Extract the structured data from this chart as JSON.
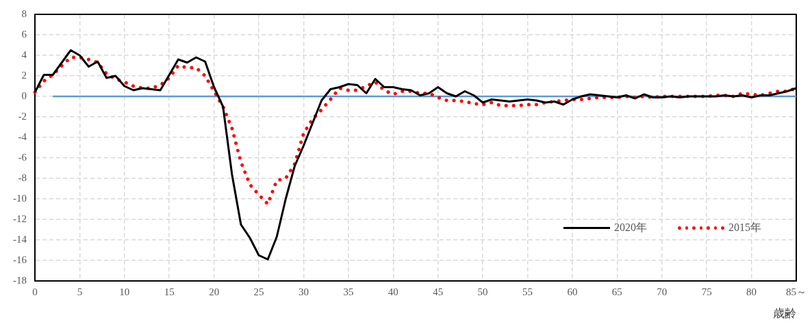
{
  "chart_data": {
    "type": "line",
    "xlabel": "歳齢",
    "categories": [
      "0",
      null,
      null,
      null,
      null,
      "5",
      null,
      null,
      null,
      null,
      "10",
      null,
      null,
      null,
      null,
      "15",
      null,
      null,
      null,
      null,
      "20",
      null,
      null,
      null,
      null,
      "25",
      null,
      null,
      null,
      null,
      "30",
      null,
      null,
      null,
      null,
      "35",
      null,
      null,
      null,
      null,
      "40",
      null,
      null,
      null,
      null,
      "45",
      null,
      null,
      null,
      null,
      "50",
      null,
      null,
      null,
      null,
      "55",
      null,
      null,
      null,
      null,
      "60",
      null,
      null,
      null,
      null,
      "65",
      null,
      null,
      null,
      null,
      "70",
      null,
      null,
      null,
      null,
      "75",
      null,
      null,
      null,
      null,
      "80",
      null,
      null,
      null,
      null,
      "85～"
    ],
    "series": [
      {
        "name": "2020年",
        "color": "#000000",
        "line_style": "solid",
        "values": [
          0.4,
          2.1,
          2.1,
          3.3,
          4.5,
          4.0,
          2.9,
          3.4,
          1.8,
          2.0,
          1.0,
          0.6,
          0.8,
          0.7,
          0.6,
          2.1,
          3.6,
          3.3,
          3.8,
          3.4,
          0.9,
          -1.0,
          -7.6,
          -12.5,
          -13.8,
          -15.5,
          -15.9,
          -13.7,
          -10.0,
          -6.8,
          -4.8,
          -2.6,
          -0.4,
          0.7,
          0.9,
          1.2,
          1.1,
          0.3,
          1.7,
          0.9,
          0.9,
          0.7,
          0.6,
          0.1,
          0.3,
          0.9,
          0.3,
          0.0,
          0.5,
          0.1,
          -0.6,
          -0.3,
          -0.4,
          -0.5,
          -0.4,
          -0.3,
          -0.4,
          -0.6,
          -0.5,
          -0.8,
          -0.3,
          0.0,
          0.2,
          0.1,
          0.0,
          -0.1,
          0.1,
          -0.2,
          0.2,
          -0.1,
          -0.1,
          0.0,
          -0.1,
          0.0,
          0.0,
          0.0,
          0.0,
          0.1,
          0.0,
          0.1,
          -0.1,
          0.1,
          0.1,
          0.3,
          0.5,
          0.8
        ]
      },
      {
        "name": "2015年",
        "color": "#ff0000",
        "line_style": "dotted",
        "values": [
          0.4,
          1.5,
          2.1,
          3.0,
          3.8,
          3.8,
          3.6,
          3.3,
          2.2,
          1.7,
          1.4,
          1.0,
          0.8,
          0.8,
          1.1,
          1.8,
          3.0,
          2.8,
          2.8,
          2.0,
          0.5,
          -1.0,
          -3.1,
          -6.4,
          -8.6,
          -9.6,
          -10.5,
          -8.2,
          -8.0,
          -6.6,
          -3.6,
          -2.2,
          -1.3,
          -0.3,
          0.8,
          0.6,
          0.6,
          1.0,
          1.4,
          0.6,
          0.2,
          0.5,
          0.5,
          0.3,
          0.3,
          -0.1,
          -0.4,
          -0.4,
          -0.5,
          -0.7,
          -0.8,
          -0.6,
          -0.9,
          -0.9,
          -0.9,
          -0.8,
          -0.8,
          -0.6,
          -0.5,
          -0.4,
          -0.3,
          -0.3,
          -0.2,
          -0.1,
          -0.1,
          -0.1,
          0.0,
          -0.1,
          0.0,
          -0.1,
          0.0,
          0.0,
          0.0,
          0.0,
          0.0,
          0.0,
          0.1,
          0.1,
          0.0,
          0.3,
          0.2,
          0.1,
          0.3,
          0.5,
          0.5,
          0.8
        ]
      },
      {
        "color": "#5b9bd5",
        "line_style": "solid",
        "values": [
          null,
          null,
          0,
          0,
          0,
          0,
          0,
          0,
          0,
          0,
          0,
          0,
          0,
          0,
          0,
          0,
          0,
          0,
          0,
          0,
          0,
          0,
          0,
          0,
          0,
          0,
          0,
          0,
          0,
          0,
          0,
          0,
          0,
          0,
          0,
          0,
          0,
          0,
          0,
          0,
          0,
          0,
          0,
          0,
          0,
          0,
          0,
          0,
          0,
          0,
          0,
          0,
          0,
          0,
          0,
          0,
          0,
          0,
          0,
          0,
          0,
          0,
          0,
          0,
          0,
          0,
          0,
          0,
          0,
          0,
          0,
          0,
          0,
          0,
          0,
          0,
          0,
          0,
          0,
          0,
          0,
          0,
          0,
          0,
          0,
          0
        ]
      }
    ],
    "ylim": [
      -18,
      8
    ],
    "yticks": [
      -18,
      -16,
      -14,
      -12,
      -10,
      -8,
      -6,
      -4,
      -2,
      0,
      2,
      4,
      6,
      8
    ],
    "grid": true,
    "legend": "bottom right",
    "marker": "none"
  }
}
